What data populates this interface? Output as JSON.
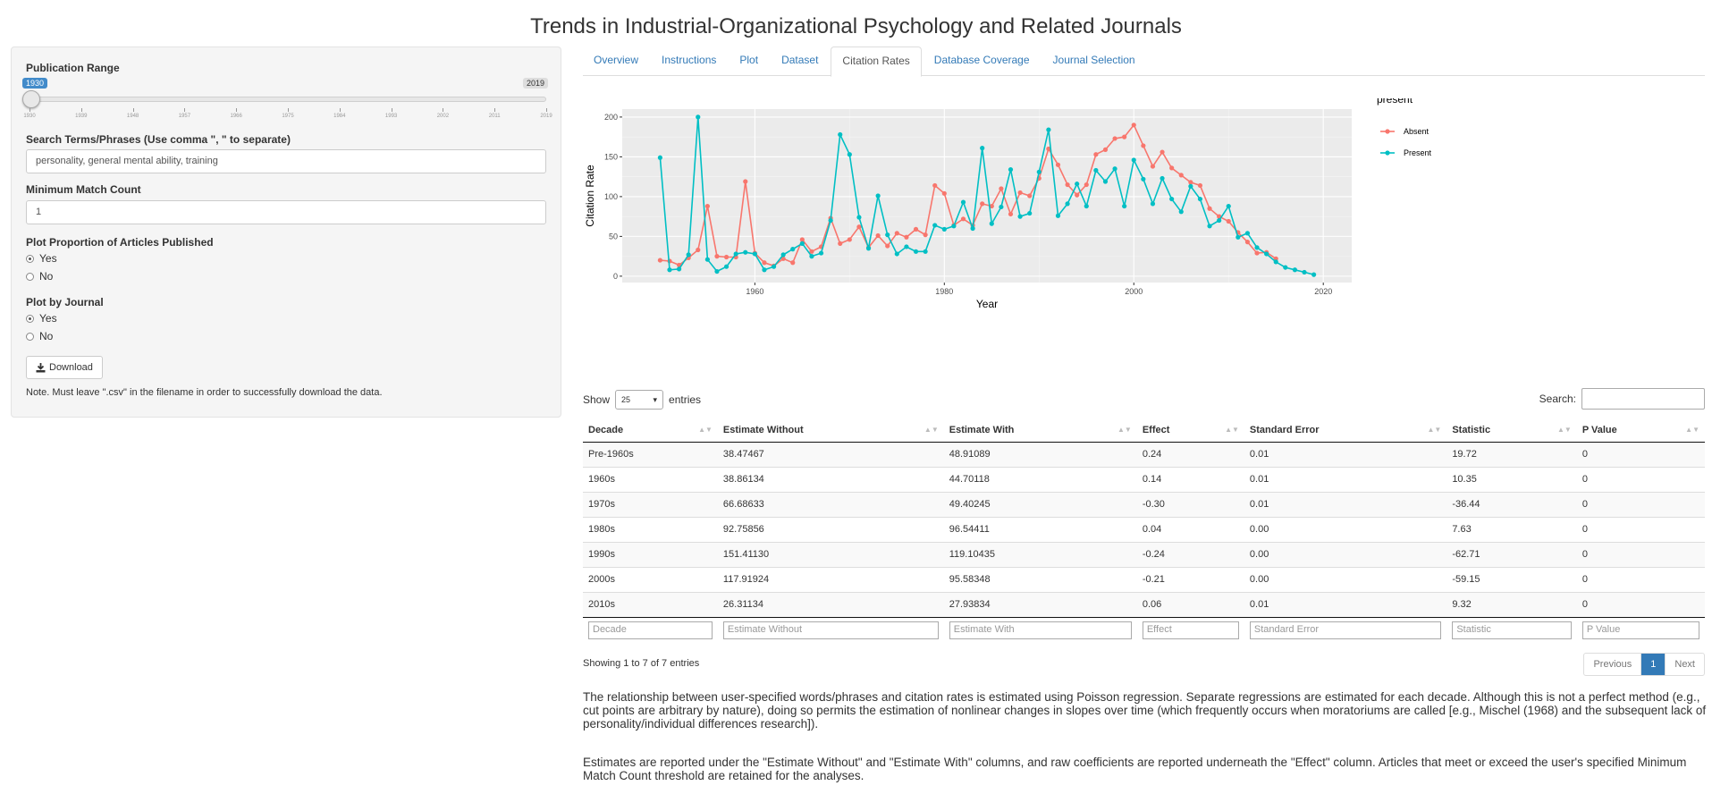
{
  "page": {
    "title": "Trends in Industrial-Organizational Psychology and Related Journals"
  },
  "sidebar": {
    "pub_range_label": "Publication Range",
    "slider": {
      "min_value": "1930",
      "max_value": "2019",
      "ticks": [
        "1930",
        "1939",
        "1948",
        "1957",
        "1966",
        "1975",
        "1984",
        "1993",
        "2002",
        "2011",
        "2019"
      ]
    },
    "search_label": "Search Terms/Phrases (Use comma \", \" to separate)",
    "search_value": "personality, general mental ability, training",
    "min_match_label": "Minimum Match Count",
    "min_match_value": "1",
    "plot_prop_label": "Plot Proportion of Articles Published",
    "plot_prop_yes": "Yes",
    "plot_prop_no": "No",
    "plot_journal_label": "Plot by Journal",
    "plot_journal_yes": "Yes",
    "plot_journal_no": "No",
    "download_label": "Download",
    "note": "Note. Must leave \".csv\" in the filename in order to successfully download the data."
  },
  "tabs": [
    "Overview",
    "Instructions",
    "Plot",
    "Dataset",
    "Citation Rates",
    "Database Coverage",
    "Journal Selection"
  ],
  "active_tab": "Citation Rates",
  "colors": {
    "absent": "#F8766D",
    "present": "#00BFC4",
    "panel": "#EBEBEB",
    "accent": "#337ab7"
  },
  "chart_data": {
    "type": "line",
    "xlabel": "Year",
    "ylabel": "Citation Rate",
    "xlim": [
      1946,
      2023
    ],
    "ylim": [
      -8,
      210
    ],
    "xticks": [
      1960,
      1980,
      2000,
      2020
    ],
    "yticks": [
      0,
      50,
      100,
      150,
      200
    ],
    "grid": true,
    "legend_title": "present",
    "legend_position": "right",
    "series": [
      {
        "name": "Absent",
        "color": "#F8766D",
        "x": [
          1950,
          1951,
          1952,
          1953,
          1954,
          1955,
          1956,
          1957,
          1958,
          1959,
          1960,
          1961,
          1962,
          1963,
          1964,
          1965,
          1966,
          1967,
          1968,
          1969,
          1970,
          1971,
          1972,
          1973,
          1974,
          1975,
          1976,
          1977,
          1978,
          1979,
          1980,
          1981,
          1982,
          1983,
          1984,
          1985,
          1986,
          1987,
          1988,
          1989,
          1990,
          1991,
          1992,
          1993,
          1994,
          1995,
          1996,
          1997,
          1998,
          1999,
          2000,
          2001,
          2002,
          2003,
          2004,
          2005,
          2006,
          2007,
          2008,
          2009,
          2010,
          2011,
          2012,
          2013,
          2014,
          2015
        ],
        "y": [
          20,
          19,
          14,
          23,
          33,
          88,
          25,
          24,
          24,
          119,
          29,
          17,
          13,
          22,
          17,
          46,
          31,
          37,
          73,
          41,
          46,
          62,
          36,
          51,
          38,
          54,
          49,
          59,
          52,
          114,
          104,
          64,
          72,
          64,
          91,
          88,
          110,
          78,
          105,
          101,
          123,
          160,
          140,
          115,
          102,
          115,
          153,
          159,
          173,
          175,
          190,
          164,
          138,
          156,
          136,
          127,
          118,
          114,
          85,
          75,
          69,
          55,
          43,
          29,
          30,
          22
        ]
      },
      {
        "name": "Present",
        "color": "#00BFC4",
        "x": [
          1950,
          1951,
          1952,
          1953,
          1954,
          1955,
          1956,
          1957,
          1958,
          1959,
          1960,
          1961,
          1962,
          1963,
          1964,
          1965,
          1966,
          1967,
          1968,
          1969,
          1970,
          1971,
          1972,
          1973,
          1974,
          1975,
          1976,
          1977,
          1978,
          1979,
          1980,
          1981,
          1982,
          1983,
          1984,
          1985,
          1986,
          1987,
          1988,
          1989,
          1990,
          1991,
          1992,
          1993,
          1994,
          1995,
          1996,
          1997,
          1998,
          1999,
          2000,
          2001,
          2002,
          2003,
          2004,
          2005,
          2006,
          2007,
          2008,
          2009,
          2010,
          2011,
          2012,
          2013,
          2014,
          2015,
          2016,
          2017,
          2018,
          2019
        ],
        "y": [
          149,
          8,
          9,
          27,
          200,
          21,
          6,
          12,
          28,
          30,
          28,
          8,
          12,
          27,
          34,
          41,
          25,
          29,
          70,
          178,
          153,
          74,
          35,
          101,
          52,
          28,
          37,
          31,
          31,
          64,
          59,
          63,
          93,
          60,
          161,
          66,
          87,
          134,
          75,
          79,
          131,
          184,
          76,
          91,
          116,
          88,
          133,
          119,
          135,
          88,
          146,
          122,
          91,
          123,
          97,
          81,
          113,
          97,
          63,
          70,
          88,
          49,
          54,
          36,
          28,
          18,
          11,
          8,
          5,
          2
        ]
      }
    ]
  },
  "table": {
    "show_label": "Show",
    "entries_label": "entries",
    "page_size": "25",
    "search_label": "Search:",
    "headers": [
      "Decade",
      "Estimate Without",
      "Estimate With",
      "Effect",
      "Standard Error",
      "Statistic",
      "P Value"
    ],
    "rows": [
      [
        "Pre-1960s",
        "38.47467",
        "48.91089",
        "0.24",
        "0.01",
        "19.72",
        "0"
      ],
      [
        "1960s",
        "38.86134",
        "44.70118",
        "0.14",
        "0.01",
        "10.35",
        "0"
      ],
      [
        "1970s",
        "66.68633",
        "49.40245",
        "-0.30",
        "0.01",
        "-36.44",
        "0"
      ],
      [
        "1980s",
        "92.75856",
        "96.54411",
        "0.04",
        "0.00",
        "7.63",
        "0"
      ],
      [
        "1990s",
        "151.41130",
        "119.10435",
        "-0.24",
        "0.00",
        "-62.71",
        "0"
      ],
      [
        "2000s",
        "117.91924",
        "95.58348",
        "-0.21",
        "0.00",
        "-59.15",
        "0"
      ],
      [
        "2010s",
        "26.31134",
        "27.93834",
        "0.06",
        "0.01",
        "9.32",
        "0"
      ]
    ],
    "info": "Showing 1 to 7 of 7 entries",
    "pagination": {
      "previous": "Previous",
      "current": "1",
      "next": "Next"
    }
  },
  "paragraphs": {
    "p1": "The relationship between user-specified words/phrases and citation rates is estimated using Poisson regression. Separate regressions are estimated for each decade. Although this is not a perfect method (e.g., cut points are arbitrary by nature), doing so permits the estimation of nonlinear changes in slopes over time (which frequently occurs when moratoriums are called [e.g., Mischel (1968) and the subsequent lack of personality/individual differences research]).",
    "p2": "Estimates are reported under the \"Estimate Without\" and \"Estimate With\" columns, and raw coefficients are reported underneath the \"Effect\" column. Articles that meet or exceed the user's specified Minimum Match Count threshold are retained for the analyses."
  }
}
